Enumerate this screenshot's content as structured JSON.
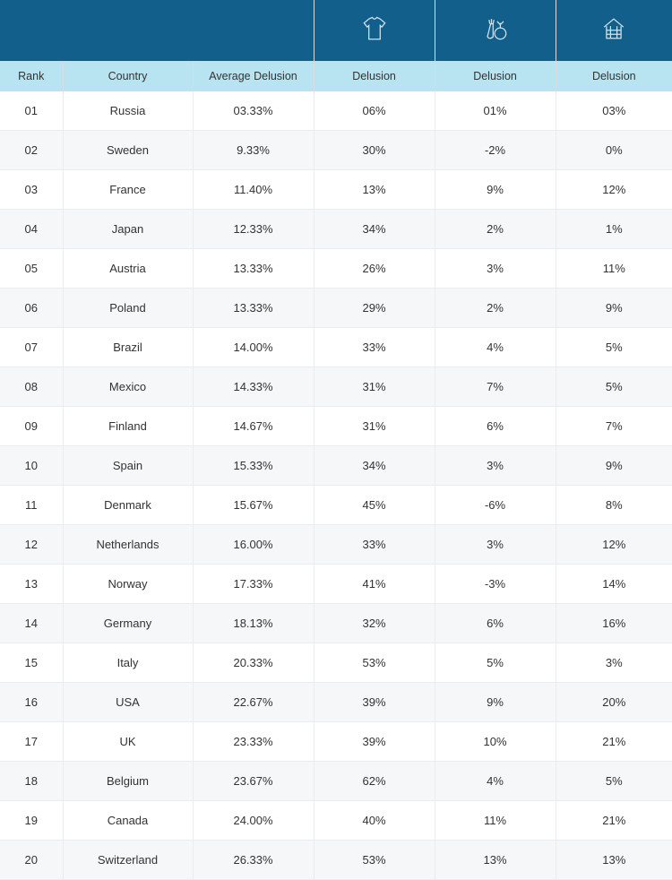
{
  "colors": {
    "header_bg": "#135f8b",
    "subheader_bg": "#b8e4f1",
    "row_even_bg": "#ffffff",
    "row_odd_bg": "#f5f7f8",
    "border": "#e9edef",
    "icon_stroke": "#cfe3ef",
    "text": "#333333"
  },
  "headers": {
    "rank": "Rank",
    "country": "Country",
    "average": "Average Delusion",
    "d1": "Delusion",
    "d2": "Delusion",
    "d3": "Delusion"
  },
  "icons": {
    "d1": "tshirt-icon",
    "d2": "vegetables-icon",
    "d3": "house-icon"
  },
  "rows": [
    {
      "rank": "01",
      "country": "Russia",
      "avg": "03.33%",
      "d1": "06%",
      "d2": "01%",
      "d3": "03%"
    },
    {
      "rank": "02",
      "country": "Sweden",
      "avg": "9.33%",
      "d1": "30%",
      "d2": "-2%",
      "d3": "0%"
    },
    {
      "rank": "03",
      "country": "France",
      "avg": "11.40%",
      "d1": "13%",
      "d2": "9%",
      "d3": "12%"
    },
    {
      "rank": "04",
      "country": "Japan",
      "avg": "12.33%",
      "d1": "34%",
      "d2": "2%",
      "d3": "1%"
    },
    {
      "rank": "05",
      "country": "Austria",
      "avg": "13.33%",
      "d1": "26%",
      "d2": "3%",
      "d3": "11%"
    },
    {
      "rank": "06",
      "country": "Poland",
      "avg": "13.33%",
      "d1": "29%",
      "d2": "2%",
      "d3": "9%"
    },
    {
      "rank": "07",
      "country": "Brazil",
      "avg": "14.00%",
      "d1": "33%",
      "d2": "4%",
      "d3": "5%"
    },
    {
      "rank": "08",
      "country": "Mexico",
      "avg": "14.33%",
      "d1": "31%",
      "d2": "7%",
      "d3": "5%"
    },
    {
      "rank": "09",
      "country": "Finland",
      "avg": "14.67%",
      "d1": "31%",
      "d2": "6%",
      "d3": "7%"
    },
    {
      "rank": "10",
      "country": "Spain",
      "avg": "15.33%",
      "d1": "34%",
      "d2": "3%",
      "d3": "9%"
    },
    {
      "rank": "11",
      "country": "Denmark",
      "avg": "15.67%",
      "d1": "45%",
      "d2": "-6%",
      "d3": "8%"
    },
    {
      "rank": "12",
      "country": "Netherlands",
      "avg": "16.00%",
      "d1": "33%",
      "d2": "3%",
      "d3": "12%"
    },
    {
      "rank": "13",
      "country": "Norway",
      "avg": "17.33%",
      "d1": "41%",
      "d2": "-3%",
      "d3": "14%"
    },
    {
      "rank": "14",
      "country": "Germany",
      "avg": "18.13%",
      "d1": "32%",
      "d2": "6%",
      "d3": "16%"
    },
    {
      "rank": "15",
      "country": "Italy",
      "avg": "20.33%",
      "d1": "53%",
      "d2": "5%",
      "d3": "3%"
    },
    {
      "rank": "16",
      "country": "USA",
      "avg": "22.67%",
      "d1": "39%",
      "d2": "9%",
      "d3": "20%"
    },
    {
      "rank": "17",
      "country": "UK",
      "avg": "23.33%",
      "d1": "39%",
      "d2": "10%",
      "d3": "21%"
    },
    {
      "rank": "18",
      "country": "Belgium",
      "avg": "23.67%",
      "d1": "62%",
      "d2": "4%",
      "d3": "5%"
    },
    {
      "rank": "19",
      "country": "Canada",
      "avg": "24.00%",
      "d1": "40%",
      "d2": "11%",
      "d3": "21%"
    },
    {
      "rank": "20",
      "country": "Switzerland",
      "avg": "26.33%",
      "d1": "53%",
      "d2": "13%",
      "d3": "13%"
    }
  ]
}
